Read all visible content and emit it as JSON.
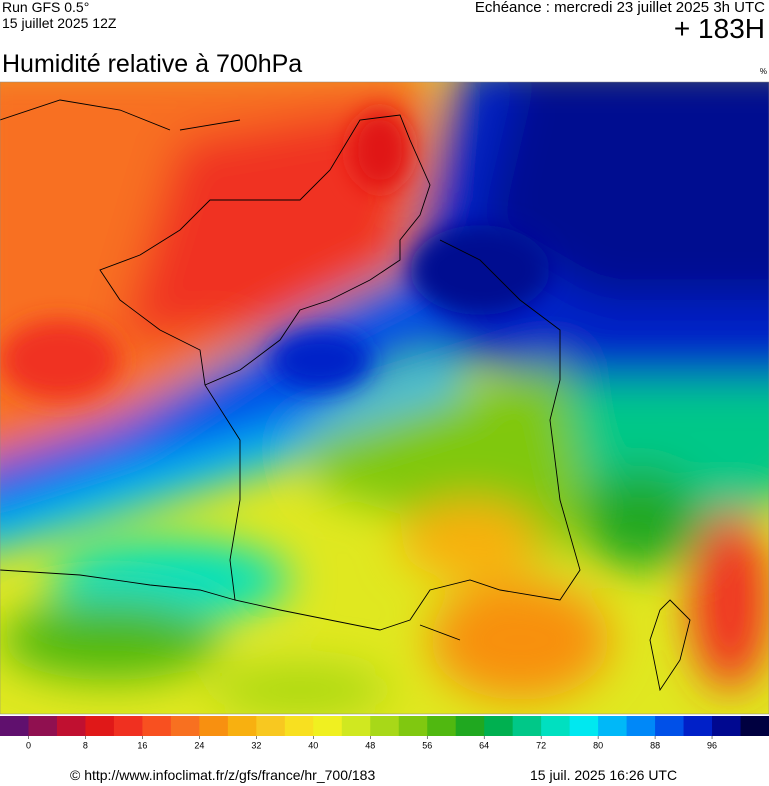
{
  "header": {
    "run": "Run GFS 0.5°",
    "run_date": "15 juillet 2025 12Z",
    "valid": "Echéance : mercredi 23 juillet 2025 3h UTC",
    "lead": "+ 183H"
  },
  "title": "Humidité relative à 700hPa",
  "unit": "%",
  "scale": {
    "xlim": [
      -4,
      104
    ],
    "ticks": [
      0,
      8,
      16,
      24,
      32,
      40,
      48,
      56,
      64,
      72,
      80,
      88,
      96
    ],
    "colors": [
      "#60106e",
      "#901050",
      "#c01030",
      "#e01818",
      "#f03020",
      "#f85020",
      "#f87020",
      "#f89010",
      "#f8b010",
      "#f8c820",
      "#f8e020",
      "#f0f020",
      "#d0e820",
      "#a8d818",
      "#80c810",
      "#50b810",
      "#20a820",
      "#00b050",
      "#00c888",
      "#00e0c0",
      "#00e8f0",
      "#00b8f8",
      "#0088f8",
      "#0050e8",
      "#0020c8",
      "#000890",
      "#000040"
    ]
  },
  "footer": {
    "url": "© http://www.infoclimat.fr/z/gfs/france/hr_700/183",
    "generated": "15 juil. 2025 16:26 UTC"
  }
}
